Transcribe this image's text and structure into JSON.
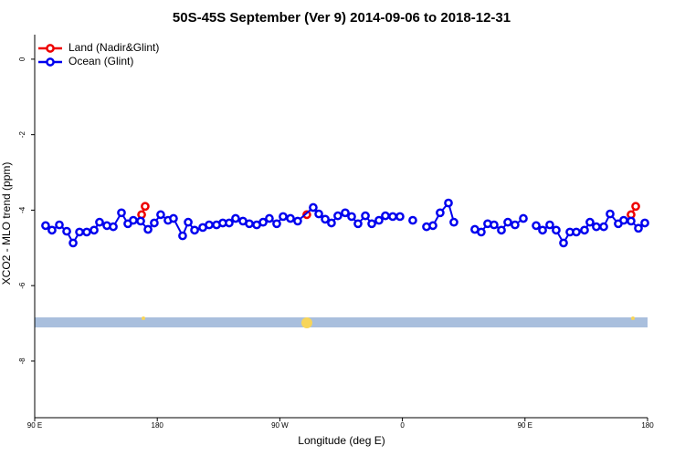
{
  "chart_data": {
    "type": "line",
    "title": "50S-45S September (Ver 9)   2014-09-06 to 2018-12-31",
    "xlabel": "Longitude (deg E)",
    "ylabel": "XCO2 - MLO trend (ppm)",
    "xlim": [
      90,
      540
    ],
    "ylim": [
      -9.5,
      0.65
    ],
    "xticks": [
      {
        "value": 90,
        "label": "90 E"
      },
      180,
      {
        "value": 270,
        "label": "90 W"
      },
      {
        "value": 360,
        "label": "0"
      },
      {
        "value": 450,
        "label": "90 E"
      },
      {
        "value": 540,
        "label": "180"
      }
    ],
    "yticks": [
      0,
      -2,
      -4,
      -6,
      -8
    ],
    "legend": "top-left",
    "series": [
      {
        "name": "Land (Nadir&Glint)",
        "color": "#ee0000",
        "x": [
          168.5,
          171.1,
          null,
          289.8,
          null,
          527.9,
          531.3
        ],
        "values": [
          -4.12,
          -3.9,
          null,
          -4.12,
          null,
          -4.12,
          -3.9
        ]
      },
      {
        "name": "Ocean (Glint)",
        "color": "#0000ee",
        "x": [
          98.0,
          102.7,
          108.1,
          113.5,
          118.2,
          122.9,
          128.2,
          133.6,
          137.6,
          143.0,
          147.7,
          153.7,
          158.4,
          162.4,
          167.8,
          173.2,
          177.8,
          182.5,
          187.9,
          191.9,
          198.6,
          202.7,
          207.4,
          213.4,
          218.1,
          223.5,
          228.1,
          232.8,
          237.5,
          242.9,
          247.6,
          253.0,
          257.7,
          262.3,
          267.7,
          272.4,
          277.8,
          283.1,
          294.5,
          298.6,
          303.3,
          307.9,
          312.6,
          318.0,
          322.7,
          327.4,
          332.8,
          337.5,
          342.8,
          347.5,
          352.9,
          358.2,
          null,
          367.6,
          null,
          377.7,
          382.4,
          387.7,
          393.8,
          397.8,
          null,
          413.2,
          417.9,
          422.6,
          427.3,
          432.7,
          437.4,
          442.7,
          448.8,
          null,
          458.2,
          462.9,
          468.2,
          472.9,
          478.3,
          483.0,
          487.7,
          493.7,
          497.7,
          502.4,
          507.8,
          512.5,
          518.5,
          522.5,
          527.9,
          533.3,
          538.0
        ],
        "values": [
          -4.41,
          -4.53,
          -4.39,
          -4.56,
          -4.87,
          -4.58,
          -4.58,
          -4.53,
          -4.32,
          -4.41,
          -4.44,
          -4.07,
          -4.36,
          -4.27,
          -4.29,
          -4.51,
          -4.34,
          -4.12,
          -4.27,
          -4.22,
          -4.68,
          -4.32,
          -4.53,
          -4.46,
          -4.39,
          -4.39,
          -4.34,
          -4.34,
          -4.22,
          -4.29,
          -4.36,
          -4.39,
          -4.32,
          -4.22,
          -4.36,
          -4.17,
          -4.22,
          -4.29,
          -3.93,
          -4.1,
          -4.24,
          -4.34,
          -4.15,
          -4.07,
          -4.17,
          -4.36,
          -4.15,
          -4.36,
          -4.27,
          -4.15,
          -4.17,
          -4.17,
          null,
          -4.27,
          null,
          -4.44,
          -4.41,
          -4.07,
          -3.81,
          -4.32,
          null,
          -4.51,
          -4.58,
          -4.36,
          -4.39,
          -4.53,
          -4.32,
          -4.39,
          -4.22,
          null,
          -4.41,
          -4.53,
          -4.39,
          -4.53,
          -4.87,
          -4.58,
          -4.58,
          -4.53,
          -4.32,
          -4.44,
          -4.44,
          -4.1,
          -4.36,
          -4.27,
          -4.29,
          -4.48,
          -4.34
        ]
      }
    ]
  }
}
